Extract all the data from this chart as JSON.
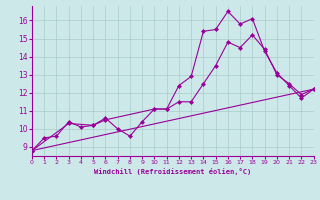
{
  "xlabel": "Windchill (Refroidissement éolien,°C)",
  "background_color": "#cde8e8",
  "grid_color": "#aacccc",
  "line_color": "#990099",
  "xmin": 0,
  "xmax": 23,
  "ymin": 8.5,
  "ymax": 16.8,
  "yticks": [
    9,
    10,
    11,
    12,
    13,
    14,
    15,
    16
  ],
  "xticks": [
    0,
    1,
    2,
    3,
    4,
    5,
    6,
    7,
    8,
    9,
    10,
    11,
    12,
    13,
    14,
    15,
    16,
    17,
    18,
    19,
    20,
    21,
    22,
    23
  ],
  "line1_x": [
    0,
    1,
    2,
    3,
    4,
    5,
    6,
    7,
    8,
    9,
    10,
    11,
    12,
    13,
    14,
    15,
    16,
    17,
    18,
    19,
    20,
    21,
    22,
    23
  ],
  "line1_y": [
    8.8,
    9.5,
    9.6,
    10.4,
    10.1,
    10.2,
    10.6,
    10.0,
    9.6,
    10.4,
    11.1,
    11.1,
    12.4,
    12.9,
    15.4,
    15.5,
    16.5,
    15.8,
    16.1,
    14.3,
    13.1,
    12.4,
    11.7,
    12.2
  ],
  "line2_x": [
    0,
    3,
    5,
    6,
    10,
    11,
    12,
    13,
    14,
    15,
    16,
    17,
    18,
    19,
    20,
    21,
    22,
    23
  ],
  "line2_y": [
    8.8,
    10.3,
    10.2,
    10.5,
    11.1,
    11.1,
    11.5,
    11.5,
    12.5,
    13.5,
    14.8,
    14.5,
    15.2,
    14.4,
    13.0,
    12.5,
    11.9,
    12.2
  ],
  "line3_x": [
    0,
    23
  ],
  "line3_y": [
    8.8,
    12.2
  ]
}
